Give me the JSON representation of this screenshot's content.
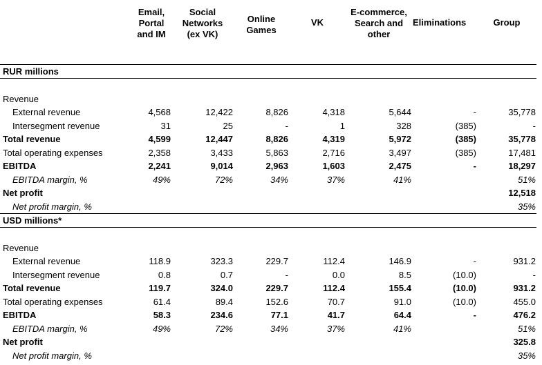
{
  "header": {
    "columns": [
      "Email,\nPortal\nand IM",
      "Social\nNetworks\n(ex VK)",
      "Online\nGames",
      "VK",
      "E-commerce,\nSearch and\nother",
      "Eliminations",
      "Group"
    ]
  },
  "sections": [
    {
      "title": "RUR millions",
      "revenue_label": "Revenue",
      "rows": [
        {
          "label": "External revenue",
          "style": "indent",
          "values": [
            "4,568",
            "12,422",
            "8,826",
            "4,318",
            "5,644",
            "-",
            "35,778"
          ]
        },
        {
          "label": "Intersegment revenue",
          "style": "indent",
          "values": [
            "31",
            "25",
            "-",
            "1",
            "328",
            "(385)",
            "-"
          ]
        },
        {
          "label": "Total revenue",
          "style": "bold",
          "values": [
            "4,599",
            "12,447",
            "8,826",
            "4,319",
            "5,972",
            "(385)",
            "35,778"
          ]
        },
        {
          "label": "Total operating expenses",
          "style": "normal",
          "values": [
            "2,358",
            "3,433",
            "5,863",
            "2,716",
            "3,497",
            "(385)",
            "17,481"
          ]
        },
        {
          "label": "EBITDA",
          "style": "bold",
          "values": [
            "2,241",
            "9,014",
            "2,963",
            "1,603",
            "2,475",
            "-",
            "18,297"
          ]
        },
        {
          "label": "EBITDA margin, %",
          "style": "italic-indent",
          "values": [
            "49%",
            "72%",
            "34%",
            "37%",
            "41%",
            "",
            "51%"
          ]
        },
        {
          "label": "Net profit",
          "style": "bold",
          "values": [
            "",
            "",
            "",
            "",
            "",
            "",
            "12,518"
          ]
        },
        {
          "label": "Net profit margin, %",
          "style": "italic-indent",
          "values": [
            "",
            "",
            "",
            "",
            "",
            "",
            "35%"
          ]
        }
      ]
    },
    {
      "title": "USD millions*",
      "revenue_label": "Revenue",
      "rows": [
        {
          "label": "External revenue",
          "style": "indent",
          "values": [
            "118.9",
            "323.3",
            "229.7",
            "112.4",
            "146.9",
            "-",
            "931.2"
          ]
        },
        {
          "label": "Intersegment revenue",
          "style": "indent",
          "values": [
            "0.8",
            "0.7",
            "-",
            "0.0",
            "8.5",
            "(10.0)",
            "-"
          ]
        },
        {
          "label": "Total revenue",
          "style": "bold",
          "values": [
            "119.7",
            "324.0",
            "229.7",
            "112.4",
            "155.4",
            "(10.0)",
            "931.2"
          ]
        },
        {
          "label": "Total operating expenses",
          "style": "normal",
          "values": [
            "61.4",
            "89.4",
            "152.6",
            "70.7",
            "91.0",
            "(10.0)",
            "455.0"
          ]
        },
        {
          "label": "EBITDA",
          "style": "bold",
          "values": [
            "58.3",
            "234.6",
            "77.1",
            "41.7",
            "64.4",
            "-",
            "476.2"
          ]
        },
        {
          "label": "EBITDA margin, %",
          "style": "italic-indent",
          "values": [
            "49%",
            "72%",
            "34%",
            "37%",
            "41%",
            "",
            "51%"
          ]
        },
        {
          "label": "Net profit",
          "style": "bold",
          "values": [
            "",
            "",
            "",
            "",
            "",
            "",
            "325.8"
          ]
        },
        {
          "label": "Net profit margin, %",
          "style": "italic-indent",
          "values": [
            "",
            "",
            "",
            "",
            "",
            "",
            "35%"
          ]
        }
      ]
    }
  ]
}
